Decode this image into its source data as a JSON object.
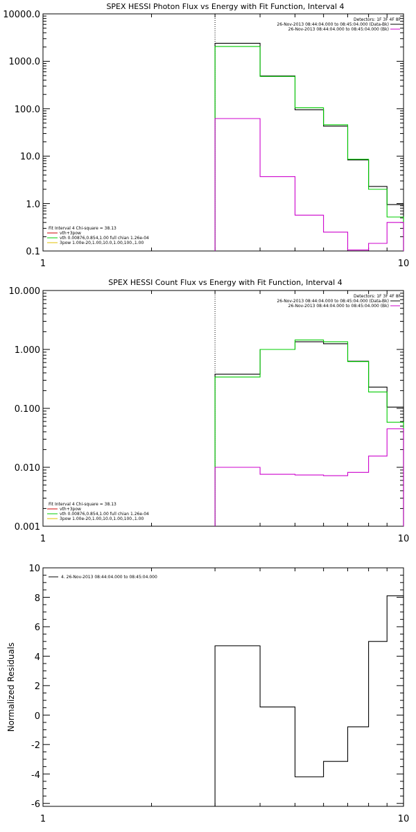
{
  "chart_data": [
    {
      "type": "line",
      "title": "SPEX HESSI Photon Flux vs Energy with Fit Function, Interval 4",
      "xscale": "log",
      "yscale": "log",
      "xlim": [
        1,
        10
      ],
      "ylim": [
        0.1,
        10000
      ],
      "x_ticks": [
        "1",
        "10"
      ],
      "y_ticks": [
        "0.1",
        "1.0",
        "10.0",
        "100.0",
        "1000.0",
        "10000.0"
      ],
      "y_tick_values": [
        0.1,
        1,
        10,
        100,
        1000,
        10000
      ],
      "vline_x": 3.0,
      "bin_edges": [
        3.0,
        4.0,
        5.0,
        6.0,
        7.0,
        8.0,
        9.0,
        10.0
      ],
      "series": [
        {
          "values": [
            2400,
            490,
            95,
            43,
            8.3,
            2.3,
            0.95
          ],
          "color": "#000000"
        },
        {
          "values": [
            2050,
            480,
            105,
            46,
            8.6,
            2.0,
            0.52
          ],
          "color": "#00cc00"
        },
        {
          "values": [
            62,
            3.7,
            0.57,
            0.25,
            0.105,
            0.145,
            0.4
          ],
          "color": "#cc00cc"
        }
      ],
      "legend_top": {
        "header": "Detectors: 1F 3F 4F 8F",
        "entries": [
          {
            "text": "26-Nov-2013 08:44:04.000 to 08:45:04.000 (Data-Bk)",
            "color": "#000000"
          },
          {
            "text": "26-Nov-2013 08:44:04.000 to 08:45:04.000 (Bk)",
            "color": "#cc00cc"
          }
        ]
      },
      "legend_fit": {
        "header": "Fit Interval 4   Chi-square = 38.13",
        "entries": [
          {
            "text": "vth+3pow",
            "color": "#cc0000"
          },
          {
            "text": "vth 0.00876,0.854,1.00   full chian 1.26e-04",
            "color": "#00cc00"
          },
          {
            "text": "3pow 1.00e-20,1.00,10.0,1.00,100.,1.00",
            "color": "#e0c000"
          }
        ]
      }
    },
    {
      "type": "line",
      "title": "SPEX HESSI Count Flux vs Energy with Fit Function, Interval 4",
      "xscale": "log",
      "yscale": "log",
      "xlim": [
        1,
        10
      ],
      "ylim": [
        0.001,
        10
      ],
      "x_ticks": [
        "1",
        "10"
      ],
      "y_ticks": [
        "0.001",
        "0.010",
        "0.100",
        "1.000",
        "10.000"
      ],
      "y_tick_values": [
        0.001,
        0.01,
        0.1,
        1,
        10
      ],
      "vline_x": 3.0,
      "bin_edges": [
        3.0,
        4.0,
        5.0,
        6.0,
        7.0,
        8.0,
        9.0,
        10.0
      ],
      "series": [
        {
          "values": [
            0.38,
            1.0,
            1.35,
            1.25,
            0.63,
            0.23,
            0.105
          ],
          "color": "#000000"
        },
        {
          "values": [
            0.34,
            1.0,
            1.45,
            1.35,
            0.62,
            0.19,
            0.058
          ],
          "color": "#00cc00"
        },
        {
          "values": [
            0.01,
            0.0076,
            0.0074,
            0.0072,
            0.0082,
            0.0155,
            0.045
          ],
          "color": "#cc00cc"
        }
      ],
      "legend_top": {
        "header": "Detectors: 1F 3F 4F 8F",
        "entries": [
          {
            "text": "26-Nov-2013 08:44:04.000 to 08:45:04.000 (Data-Bk)",
            "color": "#000000"
          },
          {
            "text": "26-Nov-2013 08:44:04.000 to 08:45:04.000 (Bk)",
            "color": "#cc00cc"
          }
        ]
      },
      "legend_fit": {
        "header": "Fit Interval 4   Chi-square = 38.13",
        "entries": [
          {
            "text": "vth+3pow",
            "color": "#cc0000"
          },
          {
            "text": "vth 0.00876,0.854,1.00   full chian 1.26e-04",
            "color": "#00cc00"
          },
          {
            "text": "3pow 1.00e-20,1.00,10.0,1.00,100.,1.00",
            "color": "#e0c000"
          }
        ]
      }
    },
    {
      "type": "line",
      "title": "",
      "xscale": "log",
      "yscale": "linear",
      "xlim": [
        1,
        10
      ],
      "ylim": [
        -6.2,
        10
      ],
      "ylabel": "Normalized Residuals",
      "x_ticks": [
        "1",
        "10"
      ],
      "y_ticks": [
        "-6",
        "-4",
        "-2",
        "0",
        "2",
        "4",
        "6",
        "8",
        "10"
      ],
      "y_tick_values": [
        -6,
        -4,
        -2,
        0,
        2,
        4,
        6,
        8,
        10
      ],
      "bin_edges": [
        3.0,
        4.0,
        5.0,
        6.0,
        7.0,
        8.0,
        9.0,
        10.0
      ],
      "series": [
        {
          "values": [
            4.7,
            0.55,
            -4.2,
            -3.15,
            -0.8,
            5.0,
            8.1
          ],
          "color": "#000000"
        }
      ],
      "legend_top": {
        "header": "",
        "entries": [
          {
            "text": "4. 26-Nov-2013 08:44:04.000 to 08:45:04.000",
            "color": "#000000"
          }
        ]
      }
    }
  ]
}
